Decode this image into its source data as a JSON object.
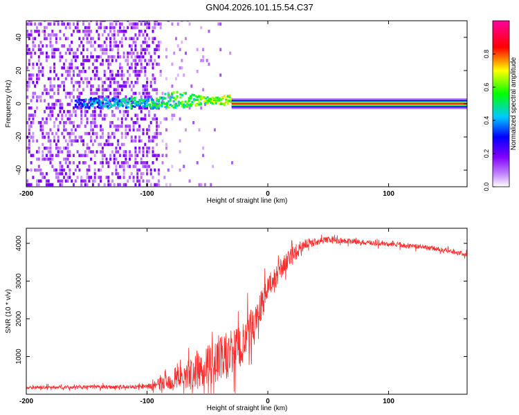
{
  "title": "GN04.2026.101.15.54.C37",
  "chart_data": [
    {
      "type": "heatmap",
      "title": "GN04.2026.101.15.54.C37",
      "xlabel": "Height of straight line (km)",
      "ylabel": "Frequency (Hz)",
      "xlim": [
        -200,
        165
      ],
      "ylim": [
        -50,
        50
      ],
      "xticks": [
        -200,
        -100,
        0,
        100
      ],
      "xtick_labels": [
        "-200",
        "-100",
        "0",
        "100"
      ],
      "yticks": [
        -40,
        -20,
        0,
        20,
        40
      ],
      "ytick_labels": [
        "-40",
        "-20",
        "0",
        "20",
        "40"
      ],
      "colorbar": {
        "label": "Normalized spectral amplitude",
        "range": [
          0,
          1
        ],
        "ticks": [
          0,
          0.2,
          0.4,
          0.6,
          0.8
        ],
        "tick_labels": [
          "0.0",
          "0.2",
          "0.4",
          "0.6",
          "0.8"
        ],
        "colors": [
          "#ffffff",
          "#8000ff",
          "#0000ff",
          "#00ffff",
          "#00ff00",
          "#ffff00",
          "#ff0000",
          "#ff00ff"
        ]
      },
      "features": {
        "noise_region_x": [
          -200,
          -90
        ],
        "sparse_region_x": [
          -90,
          -40
        ],
        "tone_center_freq_hz": 0,
        "tone_start_x": -30,
        "tone_end_x": 165
      }
    },
    {
      "type": "line",
      "xlabel": "Height of straight line (km)",
      "ylabel": "SNR (10 * v/v)",
      "xlim": [
        -200,
        165
      ],
      "ylim": [
        0,
        4400
      ],
      "xticks": [
        -200,
        -100,
        0,
        100
      ],
      "xtick_labels": [
        "-200",
        "-100",
        "0",
        "100"
      ],
      "yticks": [
        1000,
        2000,
        3000,
        4000
      ],
      "ytick_labels": [
        "1000",
        "2000",
        "3000",
        "4000"
      ],
      "color": "#ff2a2a",
      "trend": {
        "x": [
          -200,
          -100,
          -80,
          -60,
          -40,
          -20,
          -10,
          0,
          10,
          20,
          30,
          50,
          70,
          90,
          110,
          130,
          150,
          165
        ],
        "y": [
          180,
          200,
          350,
          600,
          900,
          1300,
          2000,
          2800,
          3300,
          3650,
          3980,
          4100,
          4050,
          4000,
          3950,
          3900,
          3800,
          3700
        ]
      },
      "noise_amplitude": {
        "x": [
          -200,
          -100,
          -90,
          -70,
          -50,
          -30,
          -15,
          0,
          20,
          40,
          80,
          165
        ],
        "a": [
          70,
          90,
          250,
          550,
          900,
          1100,
          900,
          550,
          400,
          150,
          110,
          100
        ]
      }
    }
  ]
}
